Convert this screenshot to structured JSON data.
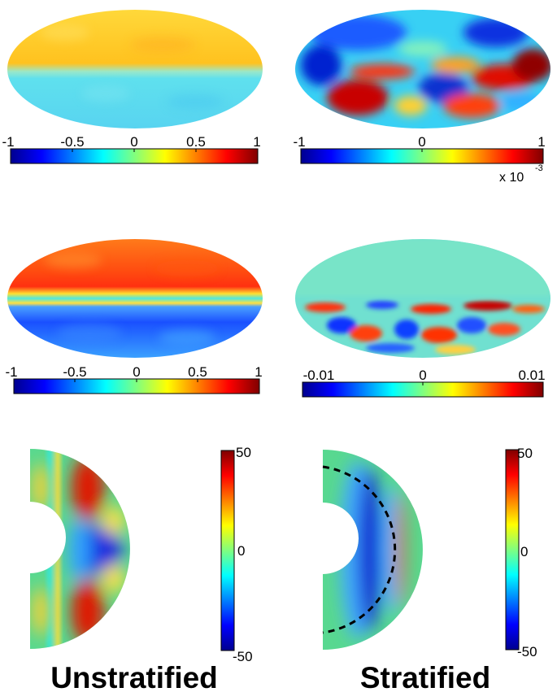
{
  "panels": [
    {
      "colorbar": {
        "ticks": [
          "-1",
          "-0.5",
          "0",
          "0.5",
          "1"
        ]
      }
    },
    {
      "colorbar": {
        "ticks": [
          "-1",
          "0",
          "1"
        ],
        "multiplier": "x 10",
        "exponent": "-3"
      }
    },
    {
      "colorbar": {
        "ticks": [
          "-1",
          "-0.5",
          "0",
          "0.5",
          "1"
        ]
      }
    },
    {
      "colorbar": {
        "ticks": [
          "-0.01",
          "0",
          "0.01"
        ]
      }
    },
    {
      "colorbar": {
        "ticks": [
          "50",
          "0",
          "-50"
        ]
      }
    },
    {
      "colorbar": {
        "ticks": [
          "50",
          "0",
          "-50"
        ]
      }
    }
  ],
  "column_titles": [
    "Unstratified",
    "Stratified"
  ],
  "colormap": "jet",
  "colors": {
    "dashed_boundary": "#000000",
    "background": "#ffffff"
  }
}
